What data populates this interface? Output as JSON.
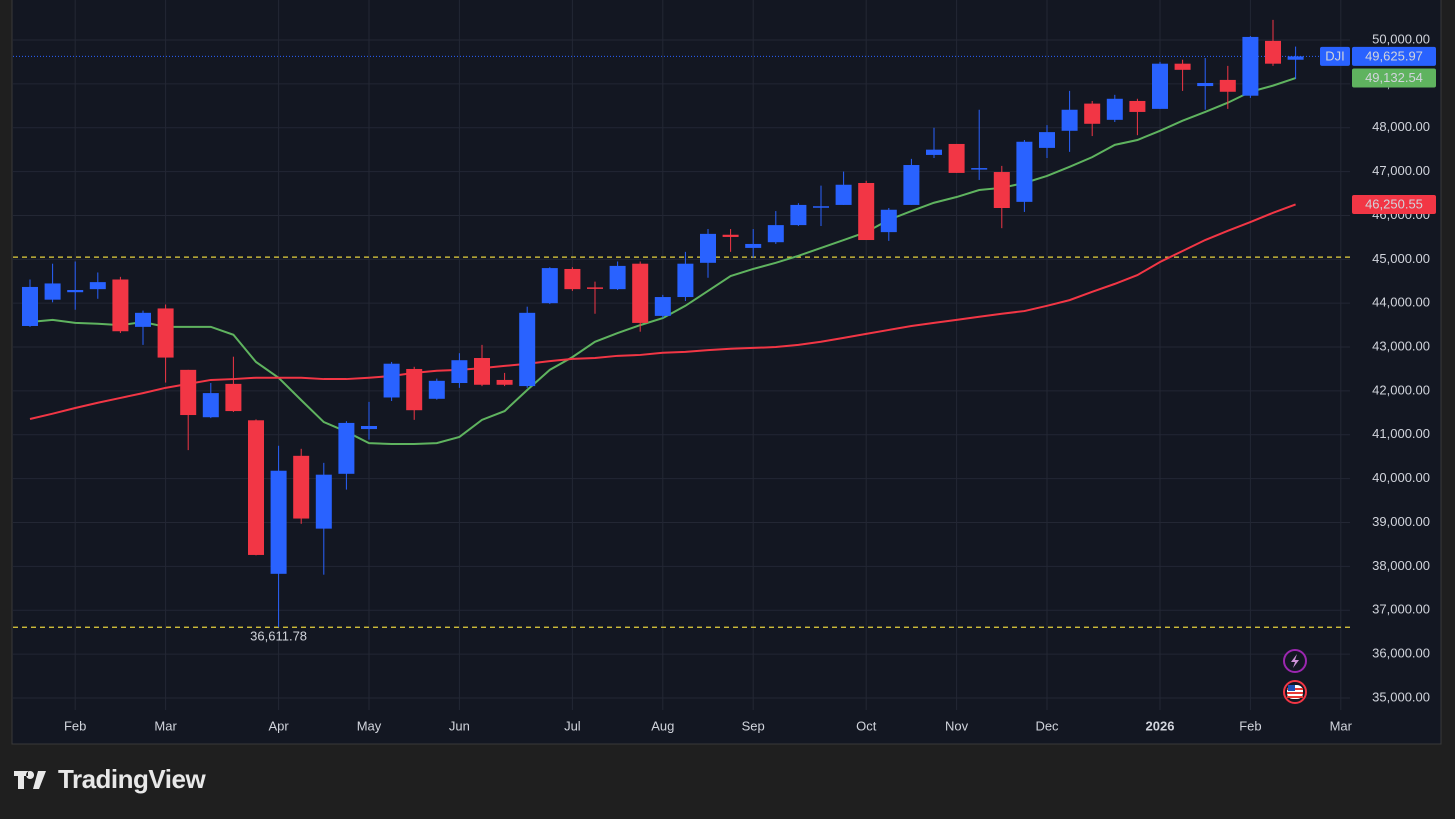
{
  "chart_data": {
    "type": "candlestick",
    "symbol": "DJI",
    "branding": "TradingView",
    "categories": [
      null,
      null,
      "Feb",
      null,
      null,
      null,
      "Mar",
      null,
      null,
      null,
      null,
      "Apr",
      null,
      null,
      null,
      "May",
      null,
      null,
      null,
      "Jun",
      null,
      null,
      null,
      null,
      "Jul",
      null,
      null,
      null,
      "Aug",
      null,
      null,
      null,
      "Sep",
      null,
      null,
      null,
      null,
      "Oct",
      null,
      null,
      null,
      "Nov",
      null,
      null,
      null,
      "Dec",
      null,
      null,
      null,
      null,
      "2026",
      null,
      null,
      null,
      "Feb",
      null,
      null,
      null,
      "Mar"
    ],
    "bold_categories": [
      "2026"
    ],
    "open": [
      43480,
      44080,
      44250,
      44320,
      44540,
      43460,
      43880,
      42480,
      41400,
      42160,
      41330,
      37830,
      40520,
      38860,
      40110,
      41130,
      41850,
      42500,
      41820,
      42180,
      42750,
      42250,
      42110,
      44000,
      44780,
      44360,
      44320,
      44900,
      43710,
      44140,
      44920,
      45560,
      45260,
      45390,
      45780,
      46190,
      46240,
      46740,
      45620,
      46240,
      47380,
      47630,
      47060,
      46990,
      46310,
      47540,
      47930,
      48550,
      48180,
      48610,
      48430,
      49460,
      48950,
      49090,
      48730,
      49980,
      49550,
      null,
      null
    ],
    "high": [
      44540,
      44900,
      44950,
      44700,
      44600,
      43830,
      43970,
      42480,
      42180,
      42780,
      41350,
      40750,
      40680,
      40360,
      41310,
      41750,
      42660,
      42550,
      42280,
      42860,
      43050,
      42410,
      43920,
      44820,
      44820,
      44490,
      44950,
      44950,
      44190,
      45170,
      45690,
      45690,
      45690,
      46100,
      46280,
      46680,
      47000,
      46790,
      46170,
      47290,
      48000,
      47630,
      48410,
      47130,
      47720,
      48060,
      48840,
      48610,
      48750,
      48660,
      49500,
      49550,
      49590,
      49410,
      50090,
      50460,
      49850,
      null,
      null
    ],
    "low": [
      43460,
      44020,
      43850,
      44100,
      43320,
      43050,
      42190,
      40650,
      41380,
      41520,
      38250,
      36611.78,
      38970,
      37810,
      39750,
      40890,
      41770,
      41340,
      41800,
      42070,
      42110,
      42110,
      42070,
      43980,
      44280,
      43760,
      44300,
      43350,
      43660,
      44050,
      44580,
      45170,
      45030,
      45350,
      45760,
      45760,
      46240,
      45440,
      45420,
      46240,
      47310,
      46970,
      46810,
      45710,
      46080,
      47310,
      47450,
      47810,
      48130,
      47830,
      48430,
      48840,
      48410,
      48430,
      48680,
      49410,
      49110,
      null,
      null
    ],
    "low_labels": [
      null,
      null,
      null,
      null,
      null,
      null,
      null,
      null,
      null,
      null,
      null,
      "36,611.78",
      null,
      null,
      null,
      null,
      null,
      null,
      null,
      null,
      null,
      null,
      null,
      null,
      null,
      null,
      null,
      null,
      null,
      null,
      null,
      null,
      null,
      null,
      null,
      null,
      null,
      null,
      null,
      null,
      null,
      null,
      null,
      null,
      null,
      null,
      null,
      null,
      null,
      null,
      null,
      null,
      null,
      null,
      null,
      null,
      null,
      null,
      null
    ],
    "close": [
      44370,
      44450,
      44300,
      44480,
      43360,
      43780,
      42760,
      41450,
      41950,
      41540,
      38260,
      40180,
      39090,
      40090,
      41270,
      41200,
      42620,
      41560,
      42230,
      42700,
      42140,
      42140,
      43780,
      44800,
      44320,
      44340,
      44850,
      43550,
      44140,
      44900,
      45580,
      45510,
      45350,
      45780,
      46240,
      46210,
      46700,
      45440,
      46130,
      47150,
      47500,
      46970,
      47080,
      46170,
      47680,
      47900,
      48410,
      48090,
      48660,
      48360,
      49460,
      49320,
      49020,
      48820,
      50070,
      49460,
      49625.97,
      null,
      null
    ],
    "close_labels": [
      null,
      null,
      null,
      null,
      null,
      null,
      null,
      null,
      null,
      null,
      null,
      null,
      null,
      null,
      null,
      null,
      null,
      null,
      null,
      null,
      null,
      null,
      null,
      null,
      null,
      null,
      null,
      null,
      null,
      null,
      null,
      null,
      null,
      null,
      null,
      null,
      null,
      null,
      null,
      null,
      null,
      null,
      null,
      null,
      null,
      null,
      null,
      null,
      null,
      null,
      null,
      null,
      null,
      null,
      null,
      null,
      "49,625.97",
      null,
      null
    ],
    "up_color": "#2962ff",
    "down_color": "#f23645",
    "series": [
      {
        "color": "#5fb35f",
        "label_text_color": "#131722",
        "values": [
          43570,
          43620,
          43550,
          43530,
          43500,
          43570,
          43460,
          43460,
          43460,
          43280,
          42660,
          42300,
          41790,
          41290,
          41070,
          40810,
          40790,
          40790,
          40810,
          40950,
          41340,
          41540,
          42020,
          42480,
          42770,
          43120,
          43320,
          43500,
          43660,
          43940,
          44280,
          44620,
          44780,
          44920,
          45080,
          45260,
          45440,
          45620,
          45900,
          46100,
          46290,
          46420,
          46580,
          46630,
          46740,
          46900,
          47110,
          47330,
          47610,
          47720,
          47930,
          48160,
          48360,
          48570,
          48820,
          48960,
          49132.54,
          null,
          null
        ],
        "value_labels": [
          null,
          null,
          null,
          null,
          null,
          null,
          null,
          null,
          null,
          null,
          null,
          null,
          null,
          null,
          null,
          null,
          null,
          null,
          null,
          null,
          null,
          null,
          null,
          null,
          null,
          null,
          null,
          null,
          null,
          null,
          null,
          null,
          null,
          null,
          null,
          null,
          null,
          null,
          null,
          null,
          null,
          null,
          null,
          null,
          null,
          null,
          null,
          null,
          null,
          null,
          null,
          null,
          null,
          null,
          null,
          null,
          "49,132.54",
          null,
          null
        ]
      },
      {
        "color": "#f23645",
        "label_text_color": "#ffffff",
        "values": [
          41360,
          41480,
          41610,
          41730,
          41840,
          41950,
          42070,
          42160,
          42250,
          42270,
          42300,
          42300,
          42300,
          42270,
          42270,
          42300,
          42340,
          42410,
          42460,
          42480,
          42520,
          42570,
          42620,
          42680,
          42730,
          42750,
          42800,
          42820,
          42870,
          42890,
          42930,
          42960,
          42980,
          43000,
          43050,
          43120,
          43210,
          43300,
          43390,
          43480,
          43550,
          43620,
          43690,
          43760,
          43820,
          43940,
          44070,
          44260,
          44440,
          44640,
          44940,
          45190,
          45440,
          45650,
          45850,
          46060,
          46250.55,
          null,
          null
        ],
        "value_labels": [
          null,
          null,
          null,
          null,
          null,
          null,
          null,
          null,
          null,
          null,
          null,
          null,
          null,
          null,
          null,
          null,
          null,
          null,
          null,
          null,
          null,
          null,
          null,
          null,
          null,
          null,
          null,
          null,
          null,
          null,
          null,
          null,
          null,
          null,
          null,
          null,
          null,
          null,
          null,
          null,
          null,
          null,
          null,
          null,
          null,
          null,
          null,
          null,
          null,
          null,
          null,
          null,
          null,
          null,
          null,
          null,
          "46,250.55",
          null,
          null
        ]
      }
    ],
    "reference_lines": [
      45050,
      36611.78
    ],
    "reference_color": "#e6d23c",
    "ylim": [
      33950,
      50912
    ],
    "yticks": [
      {
        "value": 35000,
        "label": "35,000.00"
      },
      {
        "value": 36000,
        "label": "36,000.00"
      },
      {
        "value": 37000,
        "label": "37,000.00"
      },
      {
        "value": 38000,
        "label": "38,000.00"
      },
      {
        "value": 39000,
        "label": "39,000.00"
      },
      {
        "value": 40000,
        "label": "40,000.00"
      },
      {
        "value": 41000,
        "label": "41,000.00"
      },
      {
        "value": 42000,
        "label": "42,000.00"
      },
      {
        "value": 43000,
        "label": "43,000.00"
      },
      {
        "value": 44000,
        "label": "44,000.00"
      },
      {
        "value": 45000,
        "label": "45,000.00"
      },
      {
        "value": 46000,
        "label": "46,000.00"
      },
      {
        "value": 47000,
        "label": "47,000.00"
      },
      {
        "value": 48000,
        "label": "48,000.00"
      },
      {
        "value": 49000,
        "label": "49,000.00"
      },
      {
        "value": 50000,
        "label": "50,000.00"
      }
    ],
    "grid": true
  }
}
